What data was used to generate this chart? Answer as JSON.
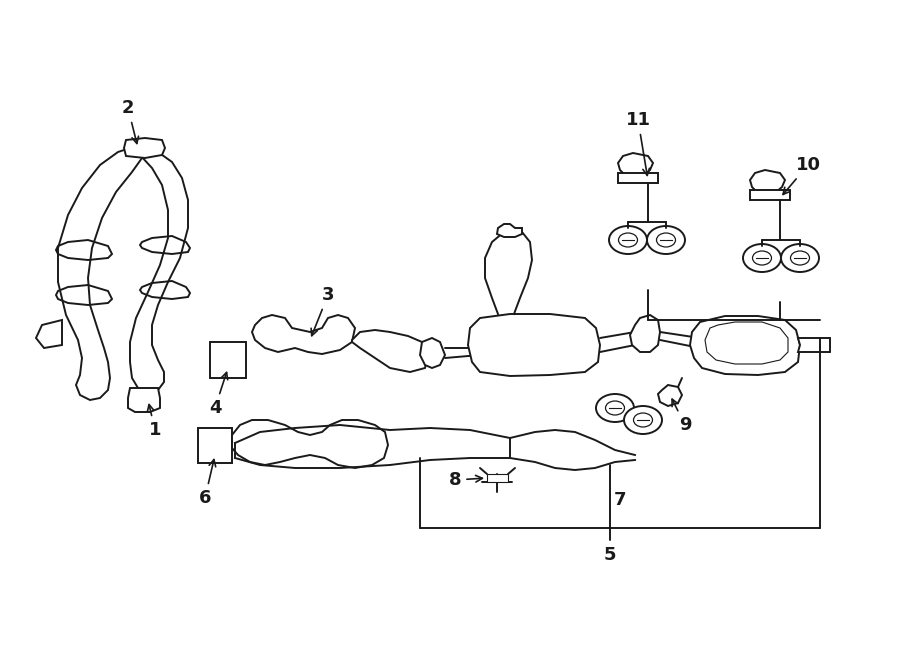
{
  "bg_color": "#ffffff",
  "line_color": "#1a1a1a",
  "figsize": [
    9.0,
    6.61
  ],
  "dpi": 100,
  "label_fontsize": 13,
  "arrow_lw": 1.2,
  "draw_lw": 1.4
}
